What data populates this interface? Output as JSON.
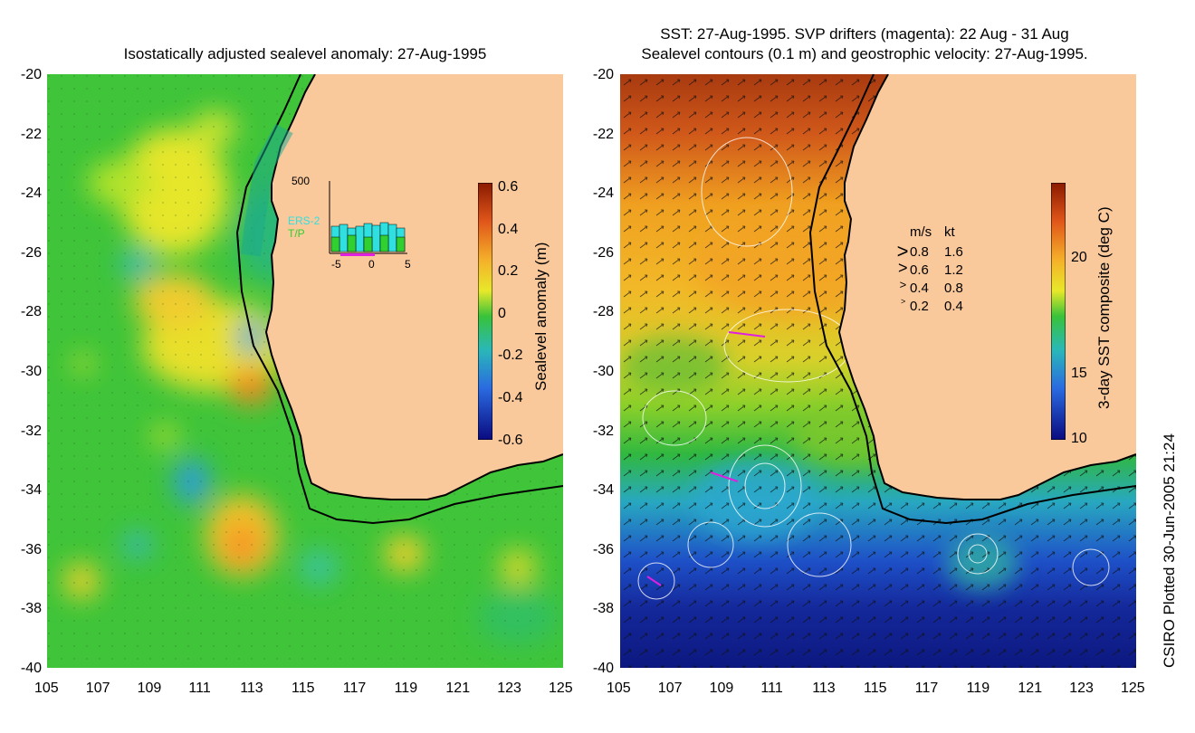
{
  "left_panel": {
    "title": "Isostatically adjusted sealevel anomaly: 27-Aug-1995",
    "y_ticks": [
      "-20",
      "-22",
      "-24",
      "-26",
      "-28",
      "-30",
      "-32",
      "-34",
      "-36",
      "-38",
      "-40"
    ],
    "x_ticks": [
      "105",
      "107",
      "109",
      "111",
      "113",
      "115",
      "117",
      "119",
      "121",
      "123",
      "125"
    ],
    "colorbar": {
      "label": "Sealevel anomaly (m)",
      "ticks": [
        "0.6",
        "0.4",
        "0.2",
        "0",
        "-0.2",
        "-0.4",
        "-0.6"
      ]
    },
    "inset": {
      "ymax_label": "500",
      "ers2_label": "ERS-2",
      "tp_label": "T/P",
      "x_ticks": [
        "-5",
        "0",
        "5"
      ]
    }
  },
  "right_panel": {
    "title_line1": "SST: 27-Aug-1995. SVP drifters (magenta): 22 Aug - 31 Aug",
    "title_line2": "Sealevel contours (0.1 m) and geostrophic velocity: 27-Aug-1995.",
    "y_ticks": [
      "-20",
      "-22",
      "-24",
      "-26",
      "-28",
      "-30",
      "-32",
      "-34",
      "-36",
      "-38",
      "-40"
    ],
    "x_ticks": [
      "105",
      "107",
      "109",
      "111",
      "113",
      "115",
      "117",
      "119",
      "121",
      "123",
      "125"
    ],
    "colorbar": {
      "label": "3-day SST composite (deg C)",
      "ticks": [
        "20",
        "15",
        "10"
      ]
    },
    "legend": {
      "header_ms": "m/s",
      "header_kt": "kt",
      "rows": [
        {
          "ms": "0.8",
          "kt": "1.6"
        },
        {
          "ms": "0.6",
          "kt": "1.2"
        },
        {
          "ms": "0.4",
          "kt": "0.8"
        },
        {
          "ms": "0.2",
          "kt": "0.4"
        }
      ]
    }
  },
  "credit": "CSIRO Plotted 30-Jun-2005 21:24",
  "colors": {
    "land": "#f9c89b",
    "coast": "#000000"
  }
}
